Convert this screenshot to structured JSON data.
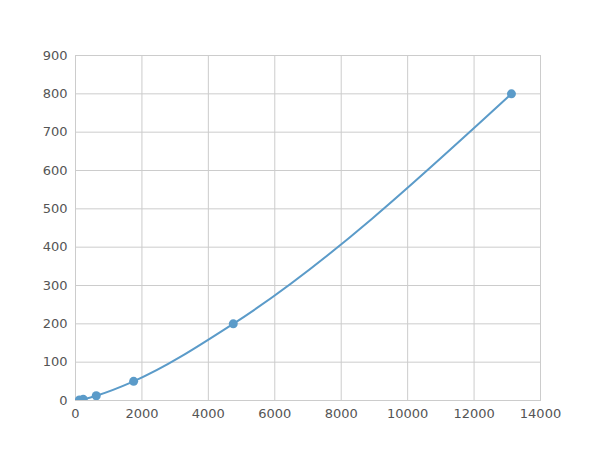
{
  "chart_data": {
    "type": "line",
    "x": [
      117,
      234,
      625,
      1750,
      4750,
      13125
    ],
    "values": [
      1.5,
      3.1,
      12.5,
      50,
      200,
      800
    ],
    "color": "#5b9bc9",
    "marker": "circle",
    "line_style": "smooth",
    "xlim": [
      0,
      14000
    ],
    "xticks": [
      0,
      2000,
      4000,
      6000,
      8000,
      10000,
      12000,
      14000
    ],
    "ylim": [
      0,
      900
    ],
    "yticks": [
      0,
      100,
      200,
      300,
      400,
      500,
      600,
      700,
      800,
      900
    ],
    "grid": true
  }
}
